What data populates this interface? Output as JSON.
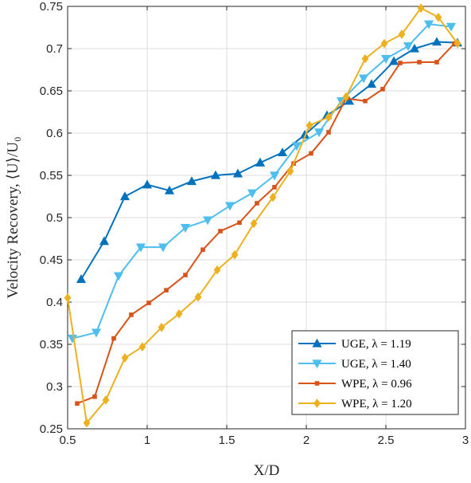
{
  "chart_data": {
    "type": "line",
    "xlabel": "X/D",
    "ylabel": "Velocity Recovery, ⟨U⟩/U₀",
    "xlim": [
      0.5,
      3
    ],
    "ylim": [
      0.25,
      0.75
    ],
    "xticks": [
      0.5,
      1,
      1.5,
      2,
      2.5,
      3
    ],
    "xtick_labels": [
      "0.5",
      "1",
      "1.5",
      "2",
      "2.5",
      "3"
    ],
    "yticks": [
      0.25,
      0.3,
      0.35,
      0.4,
      0.45,
      0.5,
      0.55,
      0.6,
      0.65,
      0.7,
      0.75
    ],
    "ytick_labels": [
      "0.25",
      "0.3",
      "0.35",
      "0.4",
      "0.45",
      "0.5",
      "0.55",
      "0.6",
      "0.65",
      "0.7",
      "0.75"
    ],
    "grid": true,
    "legend_position": "bottom-right",
    "series": [
      {
        "name": "UGE, λ = 1.19",
        "color": "#0072BD",
        "marker": "triangle-up",
        "x": [
          0.585,
          0.73,
          0.86,
          1.0,
          1.14,
          1.28,
          1.43,
          1.57,
          1.71,
          1.71,
          1.85,
          1.99,
          2.13,
          2.27,
          2.41,
          2.55,
          2.68,
          2.82,
          2.95
        ],
        "y": [
          0.427,
          0.472,
          0.525,
          0.539,
          0.532,
          0.543,
          0.55,
          0.552,
          0.565,
          0.565,
          0.577,
          0.598,
          0.621,
          0.638,
          0.658,
          0.685,
          0.7,
          0.708,
          0.707
        ]
      },
      {
        "name": "UGE, λ = 1.40",
        "color": "#4DBEEE",
        "marker": "triangle-down",
        "x": [
          0.53,
          0.68,
          0.82,
          0.96,
          1.1,
          1.24,
          1.38,
          1.52,
          1.66,
          1.8,
          1.94,
          2.08,
          2.22,
          2.36,
          2.5,
          2.64,
          2.77,
          2.91
        ],
        "y": [
          0.357,
          0.364,
          0.431,
          0.465,
          0.465,
          0.488,
          0.497,
          0.514,
          0.529,
          0.55,
          0.585,
          0.601,
          0.638,
          0.665,
          0.688,
          0.703,
          0.729,
          0.726
        ]
      },
      {
        "name": "WPE, λ = 0.96",
        "color": "#D95319",
        "marker": "square",
        "x": [
          0.56,
          0.67,
          0.79,
          0.9,
          1.01,
          1.12,
          1.24,
          1.35,
          1.46,
          1.58,
          1.69,
          1.8,
          1.92,
          2.03,
          2.14,
          2.25,
          2.37,
          2.48,
          2.59,
          2.71,
          2.82,
          2.93
        ],
        "y": [
          0.28,
          0.288,
          0.357,
          0.385,
          0.399,
          0.414,
          0.432,
          0.462,
          0.484,
          0.494,
          0.517,
          0.536,
          0.564,
          0.576,
          0.601,
          0.641,
          0.638,
          0.652,
          0.683,
          0.684,
          0.684,
          0.706
        ]
      },
      {
        "name": "WPE, λ = 1.20",
        "color": "#EDB120",
        "marker": "diamond",
        "x": [
          0.5,
          0.62,
          0.74,
          0.86,
          0.97,
          1.09,
          1.2,
          1.32,
          1.44,
          1.55,
          1.67,
          1.79,
          1.9,
          2.02,
          2.14,
          2.25,
          2.37,
          2.49,
          2.6,
          2.72,
          2.83,
          2.95
        ],
        "y": [
          0.405,
          0.257,
          0.284,
          0.334,
          0.347,
          0.37,
          0.386,
          0.406,
          0.438,
          0.456,
          0.493,
          0.524,
          0.555,
          0.609,
          0.619,
          0.643,
          0.688,
          0.706,
          0.717,
          0.748,
          0.737,
          0.706
        ]
      }
    ]
  }
}
